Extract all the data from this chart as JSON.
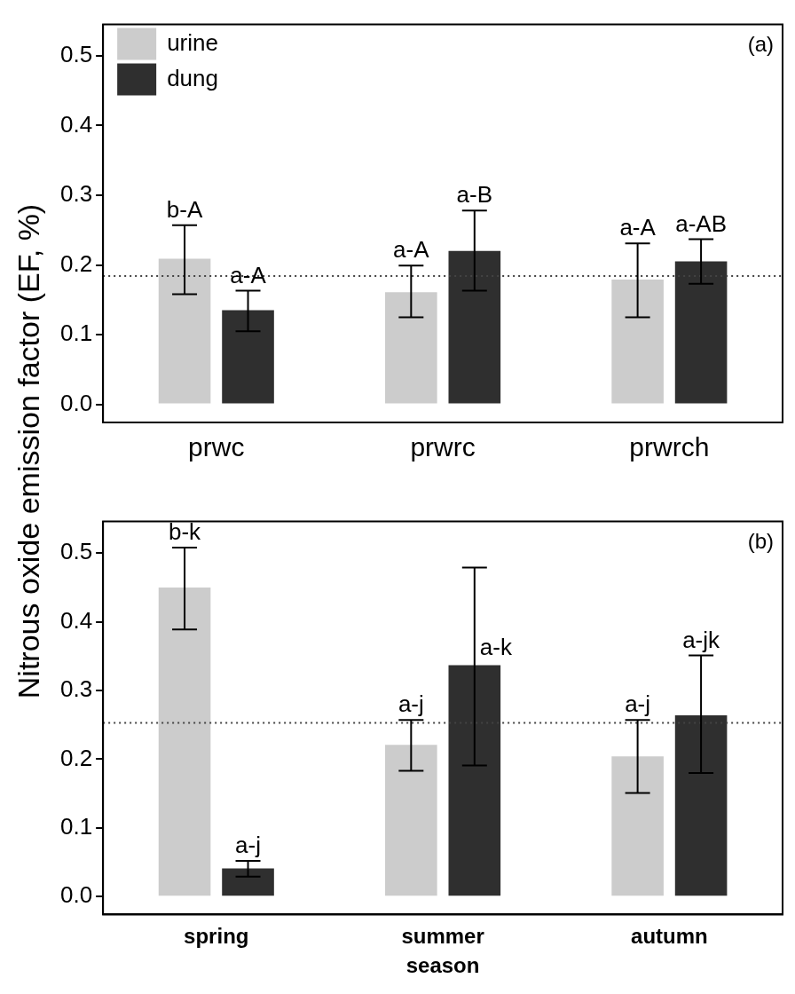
{
  "chart_data": [
    {
      "type": "bar",
      "ylabel": "Nitrous oxide emission factor (EF, %)",
      "categories": [
        "prwc",
        "prwrc",
        "prwrch"
      ],
      "series": [
        {
          "name": "urine",
          "color": "#cccccc",
          "values": [
            0.209,
            0.161,
            0.179
          ],
          "errors": [
            [
              0.158,
              0.257
            ],
            [
              0.125,
              0.199
            ],
            [
              0.125,
              0.231
            ]
          ],
          "value_labels": [
            "b-A",
            "a-A",
            "a-A"
          ]
        },
        {
          "name": "dung",
          "color": "#2f2f2f",
          "values": [
            0.135,
            0.22,
            0.205
          ],
          "errors": [
            [
              0.105,
              0.163
            ],
            [
              0.163,
              0.278
            ],
            [
              0.173,
              0.237
            ]
          ],
          "value_labels": [
            "a-A",
            "a-B",
            "a-AB"
          ]
        }
      ],
      "ylim": [
        -0.026,
        0.545
      ],
      "yticks": [
        {
          "value": 0,
          "label": "0.0"
        },
        {
          "value": 0.1,
          "label": "0.1"
        },
        {
          "value": 0.2,
          "label": "0.2"
        },
        {
          "value": 0.3,
          "label": "0.3"
        },
        {
          "value": 0.4,
          "label": "0.4"
        },
        {
          "value": 0.5,
          "label": "0.5"
        }
      ],
      "ref_lines": [
        {
          "axis": "y",
          "value": 0.184,
          "color": "#444444",
          "line_style": "dotted"
        }
      ],
      "annotations": [
        "(a)"
      ],
      "legend": "top left",
      "grid": false
    },
    {
      "type": "bar",
      "xlabel": "season",
      "categories": [
        "spring",
        "summer",
        "autumn"
      ],
      "series": [
        {
          "color": "#cccccc",
          "values": [
            0.45,
            0.221,
            0.204
          ],
          "errors": [
            [
              0.389,
              0.508
            ],
            [
              0.183,
              0.257
            ],
            [
              0.151,
              0.257
            ]
          ],
          "value_labels": [
            "b-k",
            "a-j",
            "a-j"
          ]
        },
        {
          "color": "#2f2f2f",
          "values": [
            0.041,
            0.337,
            0.264
          ],
          "errors": [
            [
              0.029,
              0.052
            ],
            [
              0.191,
              0.479
            ],
            [
              0.18,
              0.351
            ]
          ],
          "value_labels": [
            "a-j",
            "a-k",
            "a-jk"
          ]
        }
      ],
      "ylim": [
        -0.026,
        0.546
      ],
      "yticks": [
        {
          "value": 0,
          "label": "0.0"
        },
        {
          "value": 0.1,
          "label": "0.1"
        },
        {
          "value": 0.2,
          "label": "0.2"
        },
        {
          "value": 0.3,
          "label": "0.3"
        },
        {
          "value": 0.4,
          "label": "0.4"
        },
        {
          "value": 0.5,
          "label": "0.5"
        }
      ],
      "ref_lines": [
        {
          "axis": "y",
          "value": 0.253,
          "color": "#444444",
          "line_style": "dotted"
        }
      ],
      "annotations": [
        "(b)"
      ],
      "grid": false
    }
  ]
}
